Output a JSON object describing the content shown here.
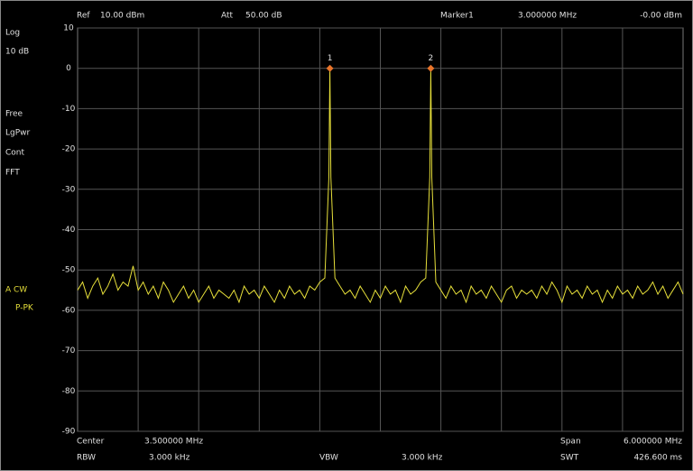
{
  "panel": {
    "ref_label": "Ref",
    "ref_value": "10.00 dBm",
    "att_label": "Att",
    "att_value": "50.00 dB",
    "marker_label": "Marker1",
    "marker_freq": "3.000000 MHz",
    "marker_level": "-0.00 dBm",
    "scale_type": "Log",
    "scale_div": "10 dB",
    "trigger": "Free",
    "detector": "LgPwr",
    "sweep": "Cont",
    "mode": "FFT",
    "trace_mode": "A CW",
    "trace_detector": "P-PK",
    "center_label": "Center",
    "center_value": "3.500000 MHz",
    "span_label": "Span",
    "span_value": "6.000000 MHz",
    "rbw_label": "RBW",
    "rbw_value": "3.000 kHz",
    "vbw_label": "VBW",
    "vbw_value": "3.000 kHz",
    "swt_label": "SWT",
    "swt_value": "426.600 ms"
  },
  "chart_data": {
    "type": "line",
    "xlim": [
      0.5,
      6.5
    ],
    "ylim": [
      -90,
      10
    ],
    "yticks": [
      10,
      0,
      -10,
      -20,
      -30,
      -40,
      -50,
      -60,
      -70,
      -80,
      -90
    ],
    "grid": true,
    "x": [
      0.5,
      0.55,
      0.6,
      0.65,
      0.7,
      0.75,
      0.8,
      0.85,
      0.9,
      0.95,
      1,
      1.05,
      1.1,
      1.15,
      1.2,
      1.25,
      1.3,
      1.35,
      1.4,
      1.45,
      1.5,
      1.55,
      1.6,
      1.65,
      1.7,
      1.75,
      1.8,
      1.85,
      1.9,
      1.95,
      2,
      2.05,
      2.1,
      2.15,
      2.2,
      2.25,
      2.3,
      2.35,
      2.4,
      2.45,
      2.5,
      2.55,
      2.6,
      2.65,
      2.7,
      2.75,
      2.8,
      2.85,
      2.9,
      2.95,
      2.99,
      3,
      3.01,
      3.05,
      3.1,
      3.15,
      3.2,
      3.25,
      3.3,
      3.35,
      3.4,
      3.45,
      3.5,
      3.55,
      3.6,
      3.65,
      3.7,
      3.75,
      3.8,
      3.85,
      3.9,
      3.95,
      3.99,
      4,
      4.01,
      4.05,
      4.1,
      4.15,
      4.2,
      4.25,
      4.3,
      4.35,
      4.4,
      4.45,
      4.5,
      4.55,
      4.6,
      4.65,
      4.7,
      4.75,
      4.8,
      4.85,
      4.9,
      4.95,
      5,
      5.05,
      5.1,
      5.15,
      5.2,
      5.25,
      5.3,
      5.35,
      5.4,
      5.45,
      5.5,
      5.55,
      5.6,
      5.65,
      5.7,
      5.75,
      5.8,
      5.85,
      5.9,
      5.95,
      6,
      6.05,
      6.1,
      6.15,
      6.2,
      6.25,
      6.3,
      6.35,
      6.4,
      6.45,
      6.5
    ],
    "series": [
      {
        "color": "#e6df3a",
        "values": [
          -55,
          -53,
          -57,
          -54,
          -52,
          -56,
          -54,
          -51,
          -55,
          -53,
          -54,
          -49,
          -55,
          -53,
          -56,
          -54,
          -57,
          -53,
          -55,
          -58,
          -56,
          -54,
          -57,
          -55,
          -58,
          -56,
          -54,
          -57,
          -55,
          -56,
          -57,
          -55,
          -58,
          -54,
          -56,
          -55,
          -57,
          -54,
          -56,
          -58,
          -55,
          -57,
          -54,
          -56,
          -55,
          -57,
          -54,
          -55,
          -53,
          -52,
          -27,
          0,
          -27,
          -52,
          -54,
          -56,
          -55,
          -57,
          -54,
          -56,
          -58,
          -55,
          -57,
          -54,
          -56,
          -55,
          -58,
          -54,
          -56,
          -55,
          -53,
          -52,
          -27,
          0,
          -27,
          -53,
          -55,
          -57,
          -54,
          -56,
          -55,
          -58,
          -54,
          -56,
          -55,
          -57,
          -54,
          -56,
          -58,
          -55,
          -54,
          -57,
          -55,
          -56,
          -55,
          -57,
          -54,
          -56,
          -53,
          -55,
          -58,
          -54,
          -56,
          -55,
          -57,
          -54,
          -56,
          -55,
          -58,
          -55,
          -57,
          -54,
          -56,
          -55,
          -57,
          -54,
          -56,
          -55,
          -53,
          -56,
          -54,
          -57,
          -55,
          -53,
          -56
        ]
      }
    ],
    "markers": [
      {
        "label": "1",
        "x": 3.0,
        "y": 0,
        "color": "#e8742a"
      },
      {
        "label": "2",
        "x": 4.0,
        "y": 0,
        "color": "#e8742a"
      }
    ]
  }
}
